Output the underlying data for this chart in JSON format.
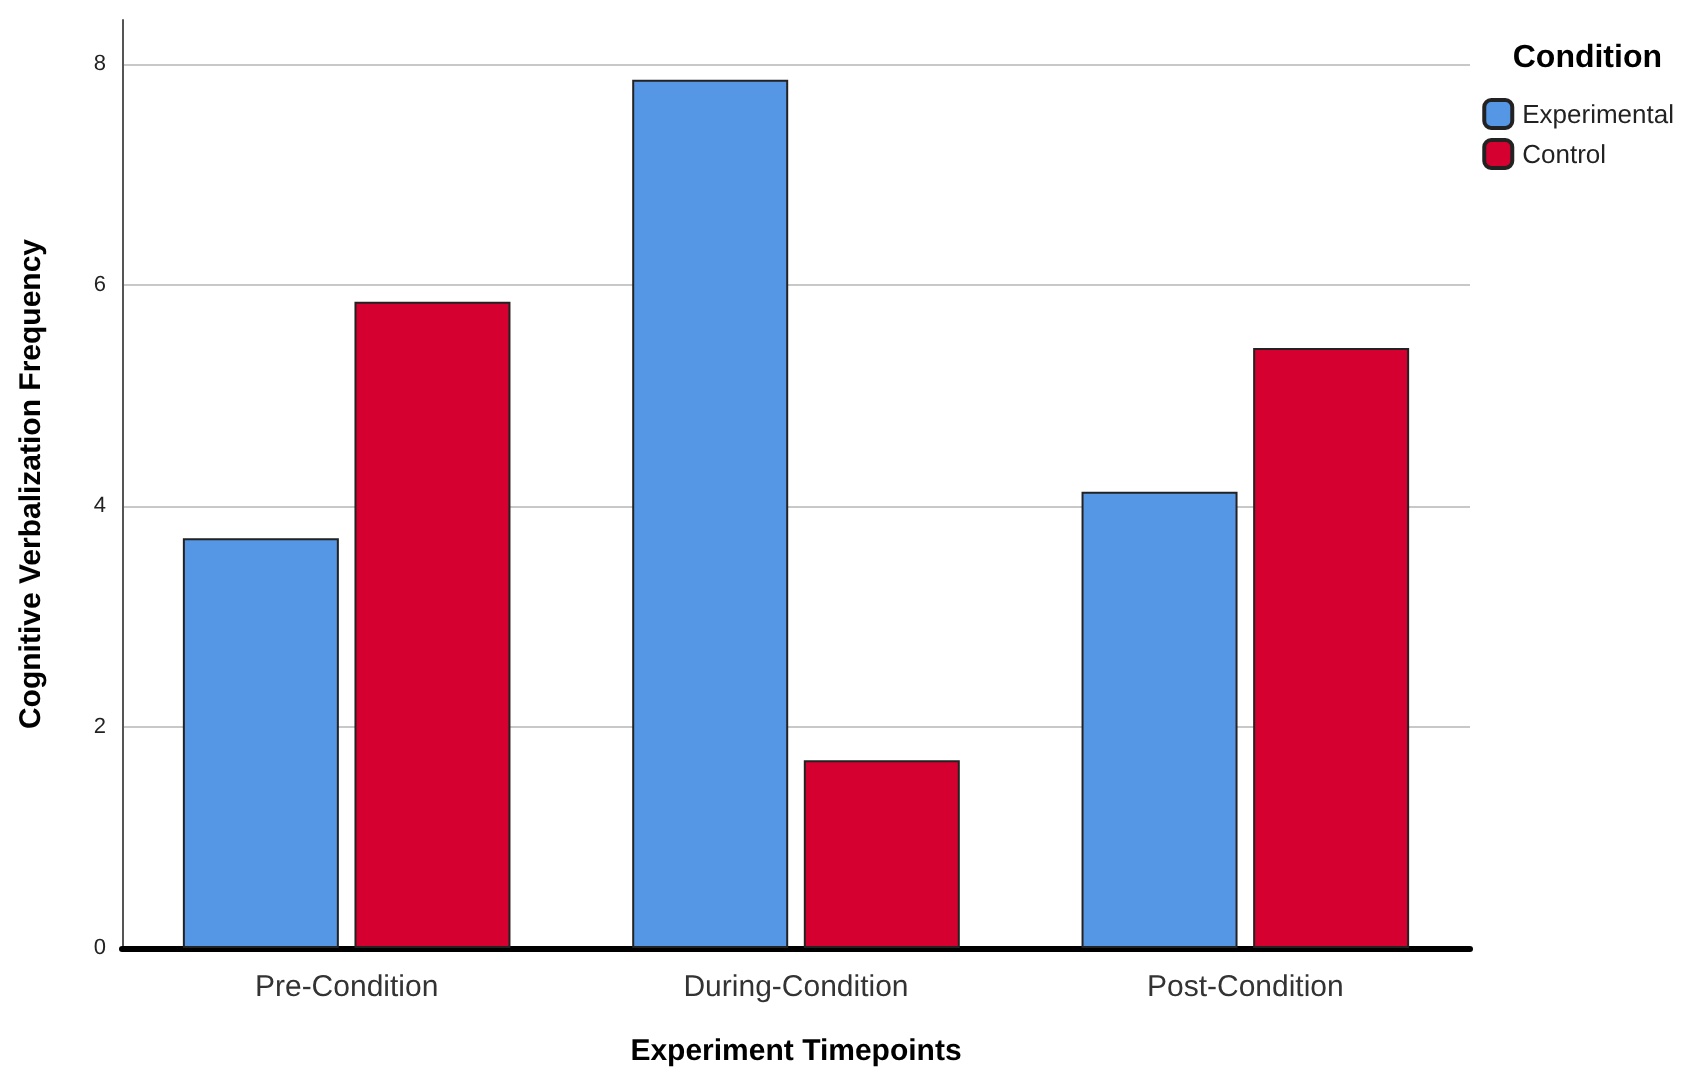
{
  "chart_data": {
    "type": "bar",
    "xlabel": "Experiment Timepoints",
    "ylabel": "Cognitive Verbalization Frequency",
    "legend_title": "Condition",
    "categories": [
      "Pre-Condition",
      "During-Condition",
      "Post-Condition"
    ],
    "series": [
      {
        "name": "Experimental",
        "color": "#5596e5",
        "values": [
          3.71,
          7.86,
          4.13
        ]
      },
      {
        "name": "Control",
        "color": "#d5002f",
        "values": [
          5.85,
          1.7,
          5.43
        ]
      }
    ],
    "ylim": [
      0,
      8.4
    ],
    "yticks": [
      0,
      2,
      4,
      6,
      8
    ],
    "grid": "y",
    "legend": "top right"
  }
}
